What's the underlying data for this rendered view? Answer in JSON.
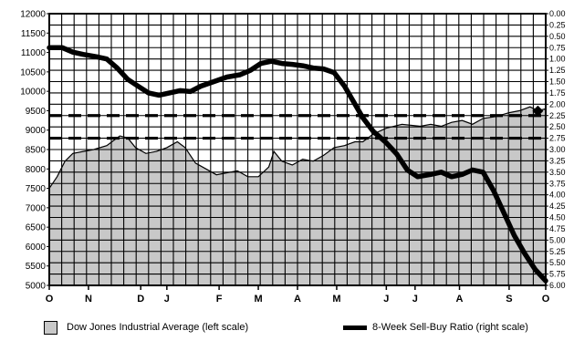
{
  "chart_data": {
    "type": "area",
    "left_axis": {
      "ylim": [
        5000,
        12000
      ],
      "ticks": [
        "12000",
        "11500",
        "11000",
        "10500",
        "10000",
        "9500",
        "9000",
        "8500",
        "8000",
        "7500",
        "7000",
        "6500",
        "6000",
        "5500",
        "5000"
      ]
    },
    "right_axis": {
      "ylim": [
        0.0,
        6.0
      ],
      "inverted": true,
      "ticks": [
        "0.00",
        "0.25",
        "0.50",
        "0.75",
        "1.00",
        "1.25",
        "1.50",
        "1.75",
        "2.00",
        "2.25",
        "2.50",
        "2.75",
        "3.00",
        "3.25",
        "3.50",
        "3.75",
        "4.00",
        "4.25",
        "4.50",
        "4.75",
        "5.00",
        "5.25",
        "5.50",
        "5.75",
        "6.00"
      ]
    },
    "x_axis": {
      "range": [
        0,
        19
      ],
      "ticks": [
        {
          "label": "O",
          "x": 0
        },
        {
          "label": "N",
          "x": 1.5
        },
        {
          "label": "D",
          "x": 3.5
        },
        {
          "label": "J",
          "x": 4.5
        },
        {
          "label": "F",
          "x": 6.5
        },
        {
          "label": "M",
          "x": 8
        },
        {
          "label": "A",
          "x": 9.5
        },
        {
          "label": "M",
          "x": 11
        },
        {
          "label": "J",
          "x": 12.9
        },
        {
          "label": "J",
          "x": 14
        },
        {
          "label": "A",
          "x": 15.7
        },
        {
          "label": "S",
          "x": 17.6
        },
        {
          "label": "O",
          "x": 19
        }
      ]
    },
    "grid": true,
    "reference_lines": [
      {
        "axis": "right",
        "value": 2.25,
        "style": "dashed"
      },
      {
        "axis": "right",
        "value": 2.75,
        "style": "dashed"
      }
    ],
    "series": [
      {
        "name": "Dow Jones Industrial Average (left scale)",
        "axis": "left",
        "style": "area",
        "color": "#c8c8c8",
        "points": [
          [
            0,
            7500
          ],
          [
            0.3,
            7800
          ],
          [
            0.6,
            8200
          ],
          [
            0.9,
            8400
          ],
          [
            1.3,
            8450
          ],
          [
            1.7,
            8500
          ],
          [
            2.2,
            8600
          ],
          [
            2.7,
            8850
          ],
          [
            3.0,
            8800
          ],
          [
            3.3,
            8550
          ],
          [
            3.7,
            8400
          ],
          [
            4.1,
            8450
          ],
          [
            4.5,
            8550
          ],
          [
            4.9,
            8700
          ],
          [
            5.2,
            8550
          ],
          [
            5.6,
            8150
          ],
          [
            6.0,
            8000
          ],
          [
            6.4,
            7850
          ],
          [
            6.8,
            7900
          ],
          [
            7.2,
            7950
          ],
          [
            7.6,
            7800
          ],
          [
            8.0,
            7800
          ],
          [
            8.4,
            8050
          ],
          [
            8.6,
            8450
          ],
          [
            8.9,
            8200
          ],
          [
            9.3,
            8100
          ],
          [
            9.7,
            8250
          ],
          [
            10.1,
            8200
          ],
          [
            10.5,
            8350
          ],
          [
            10.9,
            8550
          ],
          [
            11.3,
            8600
          ],
          [
            11.7,
            8700
          ],
          [
            12.0,
            8700
          ],
          [
            12.4,
            8900
          ],
          [
            12.9,
            9050
          ],
          [
            13.5,
            9150
          ],
          [
            14.2,
            9100
          ],
          [
            14.6,
            9150
          ],
          [
            15.0,
            9100
          ],
          [
            15.4,
            9200
          ],
          [
            15.8,
            9250
          ],
          [
            16.2,
            9150
          ],
          [
            16.6,
            9300
          ],
          [
            17.1,
            9350
          ],
          [
            17.6,
            9450
          ],
          [
            18.0,
            9500
          ],
          [
            18.4,
            9600
          ],
          [
            18.7,
            9500
          ],
          [
            19.0,
            9550
          ]
        ]
      },
      {
        "name": "8-Week Sell-Buy Ratio (right scale)",
        "axis": "right",
        "style": "line",
        "color": "#000000",
        "points": [
          [
            0,
            0.75
          ],
          [
            0.5,
            0.75
          ],
          [
            0.9,
            0.85
          ],
          [
            1.3,
            0.9
          ],
          [
            1.8,
            0.95
          ],
          [
            2.2,
            1.0
          ],
          [
            2.6,
            1.2
          ],
          [
            3.0,
            1.45
          ],
          [
            3.4,
            1.6
          ],
          [
            3.8,
            1.75
          ],
          [
            4.2,
            1.8
          ],
          [
            4.6,
            1.75
          ],
          [
            5.0,
            1.7
          ],
          [
            5.4,
            1.72
          ],
          [
            5.8,
            1.6
          ],
          [
            6.3,
            1.5
          ],
          [
            6.8,
            1.4
          ],
          [
            7.3,
            1.35
          ],
          [
            7.7,
            1.25
          ],
          [
            8.1,
            1.1
          ],
          [
            8.5,
            1.05
          ],
          [
            8.9,
            1.1
          ],
          [
            9.3,
            1.12
          ],
          [
            9.7,
            1.15
          ],
          [
            10.1,
            1.2
          ],
          [
            10.5,
            1.22
          ],
          [
            10.9,
            1.3
          ],
          [
            11.3,
            1.6
          ],
          [
            11.7,
            2.0
          ],
          [
            12.0,
            2.3
          ],
          [
            12.4,
            2.6
          ],
          [
            12.9,
            2.85
          ],
          [
            13.3,
            3.1
          ],
          [
            13.7,
            3.45
          ],
          [
            14.1,
            3.6
          ],
          [
            14.6,
            3.55
          ],
          [
            15.0,
            3.5
          ],
          [
            15.4,
            3.6
          ],
          [
            15.8,
            3.55
          ],
          [
            16.2,
            3.45
          ],
          [
            16.6,
            3.5
          ],
          [
            17.0,
            3.9
          ],
          [
            17.4,
            4.4
          ],
          [
            17.8,
            4.9
          ],
          [
            18.2,
            5.3
          ],
          [
            18.6,
            5.65
          ],
          [
            19.0,
            5.9
          ]
        ]
      }
    ],
    "marker": {
      "x": 18.7,
      "value": 2.15,
      "axis": "right",
      "shape": "diamond"
    }
  },
  "legend": {
    "dow": "Dow Jones Industrial Average (left scale)",
    "ratio": "8-Week Sell-Buy Ratio (right scale)"
  }
}
